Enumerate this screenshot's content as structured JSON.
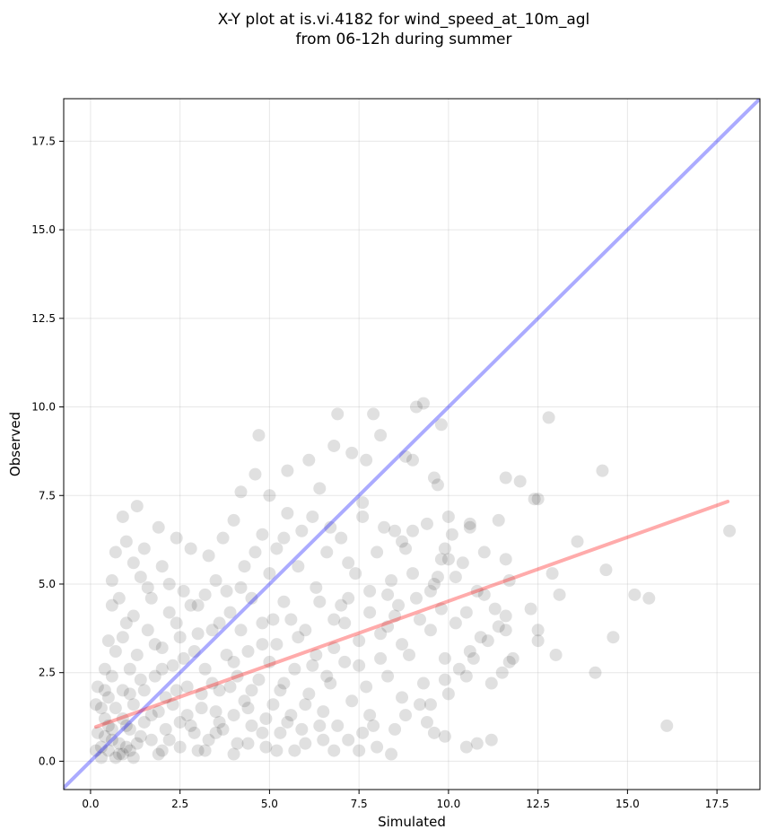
{
  "figure": {
    "title_line1": "X-Y plot at is.vi.4182 for wind_speed_at_10m_agl",
    "title_line2": "from 06-12h during summer"
  },
  "chart_data": {
    "type": "scatter",
    "title": "X-Y plot at is.vi.4182 for wind_speed_at_10m_agl\nfrom 06-12h during summer",
    "xlabel": "Simulated",
    "ylabel": "Observed",
    "xlim": [
      -0.75,
      18.7
    ],
    "ylim": [
      -0.8,
      18.7
    ],
    "xticks": [
      0.0,
      2.5,
      5.0,
      7.5,
      10.0,
      12.5,
      15.0,
      17.5
    ],
    "xtick_labels": [
      "0.0",
      "2.5",
      "5.0",
      "7.5",
      "10.0",
      "12.5",
      "15.0",
      "17.5"
    ],
    "yticks": [
      0.0,
      2.5,
      5.0,
      7.5,
      10.0,
      12.5,
      15.0,
      17.5
    ],
    "ytick_labels": [
      "0.0",
      "2.5",
      "5.0",
      "7.5",
      "10.0",
      "12.5",
      "15.0",
      "17.5"
    ],
    "grid": true,
    "point_color": "#000000",
    "point_alpha": 0.12,
    "identity_line": {
      "color": "#0000ff",
      "alpha": 0.33,
      "from": [
        -0.75,
        -0.75
      ],
      "to": [
        18.7,
        18.7
      ]
    },
    "fit_line": {
      "color": "#ff0000",
      "alpha": 0.33,
      "from": [
        0.15,
        0.97
      ],
      "to": [
        17.8,
        7.33
      ]
    },
    "points": [
      [
        16.1,
        1.0
      ],
      [
        17.85,
        6.5
      ],
      [
        15.6,
        4.6
      ],
      [
        15.2,
        4.7
      ],
      [
        14.6,
        3.5
      ],
      [
        14.4,
        5.4
      ],
      [
        14.3,
        8.2
      ],
      [
        14.1,
        2.5
      ],
      [
        13.6,
        6.2
      ],
      [
        13.1,
        4.7
      ],
      [
        12.9,
        5.3
      ],
      [
        12.8,
        9.7
      ],
      [
        12.5,
        7.4
      ],
      [
        12.5,
        3.7
      ],
      [
        12.5,
        3.4
      ],
      [
        12.4,
        7.4
      ],
      [
        12.0,
        7.9
      ],
      [
        11.8,
        2.9
      ],
      [
        11.7,
        5.1
      ],
      [
        11.7,
        2.8
      ],
      [
        11.6,
        8.0
      ],
      [
        11.6,
        5.7
      ],
      [
        11.6,
        4.1
      ],
      [
        11.6,
        3.7
      ],
      [
        11.4,
        3.8
      ],
      [
        11.3,
        4.3
      ],
      [
        11.2,
        0.6
      ],
      [
        11.2,
        2.2
      ],
      [
        11.1,
        3.4
      ],
      [
        11.0,
        4.7
      ],
      [
        10.9,
        3.5
      ],
      [
        10.8,
        0.5
      ],
      [
        10.6,
        6.6
      ],
      [
        10.6,
        6.7
      ],
      [
        10.5,
        4.2
      ],
      [
        10.5,
        2.4
      ],
      [
        10.5,
        0.4
      ],
      [
        10.2,
        5.2
      ],
      [
        10.1,
        6.4
      ],
      [
        10.0,
        5.7
      ],
      [
        9.9,
        6.0
      ],
      [
        9.9,
        2.9
      ],
      [
        9.9,
        2.3
      ],
      [
        9.9,
        0.7
      ],
      [
        9.8,
        5.7
      ],
      [
        9.8,
        9.5
      ],
      [
        9.7,
        7.8
      ],
      [
        9.6,
        8.0
      ],
      [
        9.5,
        4.8
      ],
      [
        9.5,
        1.6
      ],
      [
        9.4,
        1.1
      ],
      [
        9.3,
        10.1
      ],
      [
        9.1,
        10.0
      ],
      [
        9.0,
        8.5
      ],
      [
        9.0,
        6.5
      ],
      [
        8.8,
        8.6
      ],
      [
        8.7,
        3.3
      ],
      [
        8.7,
        6.2
      ],
      [
        8.5,
        6.5
      ],
      [
        8.5,
        0.9
      ],
      [
        8.3,
        4.7
      ],
      [
        8.3,
        3.8
      ],
      [
        8.1,
        9.2
      ],
      [
        8.1,
        2.9
      ],
      [
        7.9,
        9.8
      ],
      [
        7.8,
        4.8
      ],
      [
        7.8,
        1.3
      ],
      [
        7.7,
        8.5
      ],
      [
        7.6,
        7.3
      ],
      [
        7.5,
        2.7
      ],
      [
        7.5,
        0.3
      ],
      [
        7.3,
        8.7
      ],
      [
        7.2,
        5.6
      ],
      [
        7.1,
        3.9
      ],
      [
        7.0,
        4.4
      ],
      [
        6.9,
        9.8
      ],
      [
        6.8,
        8.9
      ],
      [
        6.8,
        3.2
      ],
      [
        6.7,
        6.6
      ],
      [
        6.6,
        2.4
      ],
      [
        6.5,
        0.6
      ],
      [
        6.4,
        7.7
      ],
      [
        6.3,
        4.9
      ],
      [
        6.2,
        2.7
      ],
      [
        6.1,
        8.5
      ],
      [
        6.0,
        1.6
      ],
      [
        5.9,
        6.5
      ],
      [
        5.8,
        3.5
      ],
      [
        5.7,
        0.3
      ],
      [
        5.5,
        8.2
      ],
      [
        5.5,
        7.0
      ],
      [
        5.4,
        4.5
      ],
      [
        5.4,
        2.2
      ],
      [
        5.3,
        0.8
      ],
      [
        5.2,
        6.0
      ],
      [
        5.1,
        4.0
      ],
      [
        5.0,
        7.5
      ],
      [
        5.0,
        2.8
      ],
      [
        4.9,
        1.2
      ],
      [
        4.8,
        6.4
      ],
      [
        4.8,
        3.3
      ],
      [
        4.7,
        9.2
      ],
      [
        4.6,
        8.1
      ],
      [
        4.5,
        4.6
      ],
      [
        4.5,
        2.0
      ],
      [
        4.4,
        0.5
      ],
      [
        4.3,
        5.5
      ],
      [
        4.2,
        3.7
      ],
      [
        4.2,
        7.6
      ],
      [
        4.1,
        2.4
      ],
      [
        4.0,
        6.8
      ],
      [
        4.0,
        1.3
      ],
      [
        3.9,
        4.2
      ],
      [
        3.8,
        3.0
      ],
      [
        3.7,
        6.3
      ],
      [
        3.6,
        2.0
      ],
      [
        3.5,
        0.8
      ],
      [
        3.5,
        5.1
      ],
      [
        3.4,
        3.7
      ],
      [
        3.3,
        5.8
      ],
      [
        3.2,
        2.6
      ],
      [
        3.1,
        1.5
      ],
      [
        3.0,
        4.4
      ],
      [
        3.0,
        0.3
      ],
      [
        2.9,
        3.1
      ],
      [
        2.8,
        6.0
      ],
      [
        2.7,
        2.1
      ],
      [
        2.6,
        4.8
      ],
      [
        2.5,
        1.1
      ],
      [
        2.5,
        3.5
      ],
      [
        2.4,
        6.3
      ],
      [
        2.3,
        2.7
      ],
      [
        2.2,
        0.6
      ],
      [
        2.2,
        4.2
      ],
      [
        2.1,
        1.8
      ],
      [
        2.0,
        5.5
      ],
      [
        2.0,
        3.2
      ],
      [
        1.9,
        6.6
      ],
      [
        1.9,
        0.2
      ],
      [
        1.8,
        2.4
      ],
      [
        1.7,
        4.6
      ],
      [
        1.7,
        1.3
      ],
      [
        1.6,
        3.7
      ],
      [
        1.5,
        6.0
      ],
      [
        1.5,
        2.0
      ],
      [
        1.4,
        0.7
      ],
      [
        1.4,
        5.2
      ],
      [
        1.3,
        7.2
      ],
      [
        1.3,
        3.0
      ],
      [
        1.2,
        1.6
      ],
      [
        1.2,
        4.1
      ],
      [
        1.1,
        0.3
      ],
      [
        1.1,
        2.6
      ],
      [
        1.0,
        6.2
      ],
      [
        1.0,
        1.0
      ],
      [
        0.9,
        3.5
      ],
      [
        0.9,
        6.9
      ],
      [
        0.9,
        2.0
      ],
      [
        0.8,
        0.5
      ],
      [
        0.8,
        4.6
      ],
      [
        0.7,
        1.5
      ],
      [
        0.7,
        3.1
      ],
      [
        0.7,
        5.9
      ],
      [
        0.6,
        0.9
      ],
      [
        0.6,
        2.4
      ],
      [
        0.6,
        4.4
      ],
      [
        0.5,
        0.3
      ],
      [
        0.5,
        1.8
      ],
      [
        0.5,
        3.4
      ],
      [
        0.4,
        0.7
      ],
      [
        0.4,
        1.2
      ],
      [
        0.4,
        2.6
      ],
      [
        0.3,
        0.4
      ],
      [
        0.3,
        1.5
      ],
      [
        0.3,
        0.1
      ],
      [
        0.2,
        0.8
      ],
      [
        0.2,
        2.1
      ],
      [
        0.15,
        0.3
      ],
      [
        0.15,
        1.6
      ],
      [
        0.6,
        5.1
      ],
      [
        0.7,
        0.1
      ],
      [
        0.9,
        0.2
      ],
      [
        1.1,
        0.9
      ],
      [
        1.3,
        0.5
      ],
      [
        1.5,
        1.1
      ],
      [
        1.7,
        0.6
      ],
      [
        1.9,
        1.4
      ],
      [
        2.1,
        0.9
      ],
      [
        2.3,
        1.6
      ],
      [
        2.5,
        0.4
      ],
      [
        2.7,
        1.3
      ],
      [
        2.9,
        0.8
      ],
      [
        3.1,
        1.9
      ],
      [
        3.3,
        0.6
      ],
      [
        3.5,
        1.4
      ],
      [
        3.7,
        0.9
      ],
      [
        3.9,
        2.1
      ],
      [
        4.1,
        0.5
      ],
      [
        4.3,
        1.7
      ],
      [
        4.5,
        1.0
      ],
      [
        4.7,
        2.3
      ],
      [
        4.9,
        0.4
      ],
      [
        5.1,
        1.6
      ],
      [
        5.3,
        2.0
      ],
      [
        5.5,
        1.1
      ],
      [
        5.7,
        2.6
      ],
      [
        5.9,
        0.9
      ],
      [
        6.1,
        1.9
      ],
      [
        6.3,
        3.0
      ],
      [
        6.5,
        1.4
      ],
      [
        6.7,
        2.2
      ],
      [
        6.9,
        1.0
      ],
      [
        7.1,
        2.8
      ],
      [
        7.3,
        1.7
      ],
      [
        7.5,
        3.4
      ],
      [
        7.7,
        2.1
      ],
      [
        7.9,
        1.0
      ],
      [
        8.1,
        3.6
      ],
      [
        8.3,
        2.4
      ],
      [
        8.5,
        4.1
      ],
      [
        8.7,
        1.8
      ],
      [
        8.9,
        3.0
      ],
      [
        9.1,
        4.6
      ],
      [
        9.3,
        2.2
      ],
      [
        9.5,
        3.7
      ],
      [
        9.7,
        5.2
      ],
      [
        1.0,
        3.9
      ],
      [
        1.2,
        5.6
      ],
      [
        1.4,
        2.3
      ],
      [
        1.6,
        4.9
      ],
      [
        1.8,
        3.3
      ],
      [
        2.0,
        2.6
      ],
      [
        2.2,
        5.0
      ],
      [
        2.4,
        3.9
      ],
      [
        2.6,
        2.9
      ],
      [
        2.8,
        4.4
      ],
      [
        3.0,
        3.6
      ],
      [
        3.2,
        4.7
      ],
      [
        3.4,
        2.2
      ],
      [
        3.6,
        3.9
      ],
      [
        3.8,
        4.8
      ],
      [
        4.0,
        2.8
      ],
      [
        4.2,
        4.9
      ],
      [
        4.4,
        3.1
      ],
      [
        4.6,
        5.9
      ],
      [
        4.8,
        3.9
      ],
      [
        5.0,
        5.3
      ],
      [
        5.2,
        3.3
      ],
      [
        5.4,
        6.3
      ],
      [
        5.6,
        4.0
      ],
      [
        5.8,
        5.5
      ],
      [
        6.0,
        3.7
      ],
      [
        6.2,
        6.9
      ],
      [
        6.4,
        4.5
      ],
      [
        6.6,
        5.9
      ],
      [
        6.8,
        4.0
      ],
      [
        7.0,
        6.3
      ],
      [
        7.2,
        4.6
      ],
      [
        7.4,
        5.3
      ],
      [
        7.6,
        6.9
      ],
      [
        7.8,
        4.2
      ],
      [
        8.0,
        5.9
      ],
      [
        8.2,
        6.6
      ],
      [
        8.4,
        5.1
      ],
      [
        8.6,
        4.4
      ],
      [
        8.8,
        6.0
      ],
      [
        9.0,
        5.3
      ],
      [
        9.2,
        4.0
      ],
      [
        9.4,
        6.7
      ],
      [
        9.6,
        5.0
      ],
      [
        9.8,
        4.3
      ],
      [
        10.0,
        6.9
      ],
      [
        10.2,
        3.9
      ],
      [
        10.4,
        5.6
      ],
      [
        10.6,
        3.1
      ],
      [
        10.8,
        4.8
      ],
      [
        11.0,
        5.9
      ],
      [
        11.4,
        6.8
      ],
      [
        12.3,
        4.3
      ],
      [
        13.0,
        3.0
      ],
      [
        0.8,
        0.2
      ],
      [
        1.0,
        0.4
      ],
      [
        1.2,
        0.1
      ],
      [
        0.5,
        1.0
      ],
      [
        0.6,
        0.6
      ],
      [
        0.9,
        1.2
      ],
      [
        1.1,
        1.9
      ],
      [
        0.4,
        2.0
      ],
      [
        2.0,
        0.3
      ],
      [
        2.4,
        2.0
      ],
      [
        2.8,
        1.0
      ],
      [
        3.2,
        0.3
      ],
      [
        3.6,
        1.1
      ],
      [
        4.0,
        0.2
      ],
      [
        4.4,
        1.5
      ],
      [
        4.8,
        0.8
      ],
      [
        5.2,
        0.3
      ],
      [
        5.6,
        1.3
      ],
      [
        6.0,
        0.5
      ],
      [
        6.4,
        1.0
      ],
      [
        6.8,
        0.3
      ],
      [
        7.2,
        0.6
      ],
      [
        7.6,
        0.8
      ],
      [
        8.0,
        0.4
      ],
      [
        8.4,
        0.2
      ],
      [
        8.8,
        1.3
      ],
      [
        9.2,
        1.6
      ],
      [
        9.6,
        0.8
      ],
      [
        10.0,
        1.9
      ],
      [
        10.3,
        2.6
      ],
      [
        10.7,
        2.9
      ],
      [
        11.5,
        2.5
      ]
    ]
  }
}
